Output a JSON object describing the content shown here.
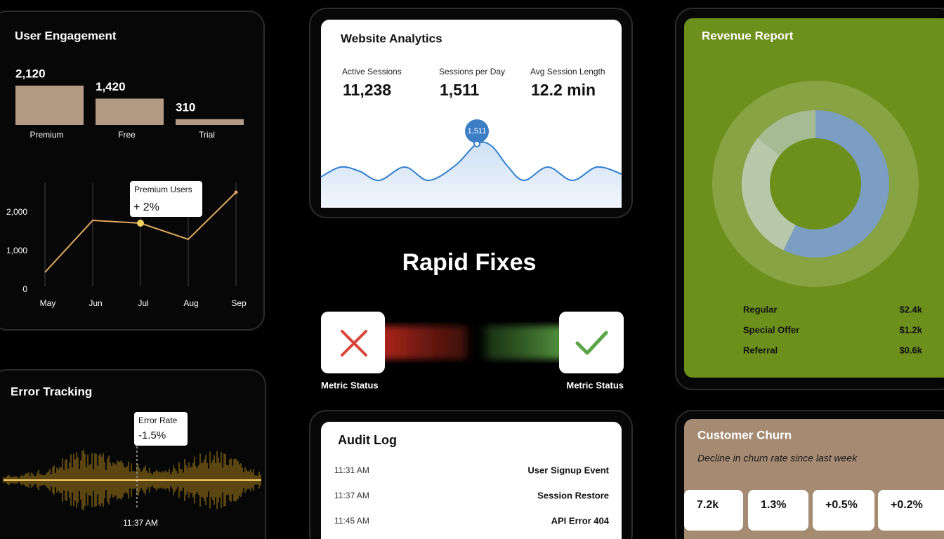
{
  "user_engagement": {
    "title": "User Engagement",
    "bar_chart": {
      "type": "bar",
      "categories": [
        "Premium",
        "Free",
        "Trial"
      ],
      "values": [
        2120,
        1420,
        310
      ],
      "value_labels": [
        "2,120",
        "1,420",
        "310"
      ],
      "color": "#b39b83"
    },
    "line_chart": {
      "type": "line",
      "x": [
        "May",
        "Jun",
        "Jul",
        "Aug",
        "Sep"
      ],
      "values": [
        455,
        1800,
        1727,
        1309,
        2527
      ],
      "color": "#e0a860",
      "ylim": [
        0,
        2800
      ],
      "yticks": [
        0,
        {
          "value": 1000,
          "label": "1,000"
        },
        {
          "value": 2000,
          "label": "2,000"
        }
      ],
      "tooltip": {
        "title": "Premium Users",
        "value": "+ 2%"
      }
    }
  },
  "website_analytics": {
    "title": "Website Analytics",
    "stats": [
      {
        "label": "Active Sessions",
        "value": "11,238"
      },
      {
        "label": "Sessions per Day",
        "value": "1,511"
      },
      {
        "label": "Avg Session Length",
        "value": "12.2 min"
      }
    ],
    "peak_label": "1,511"
  },
  "rapid_fixes": {
    "title": "Rapid Fixes",
    "status_left": "Metric Status",
    "status_right": "Metric Status"
  },
  "revenue_report": {
    "title": "Revenue Report",
    "chart": {
      "type": "pie",
      "categories": [
        "Regular",
        "Special Offer",
        "Referral"
      ],
      "values": [
        2.4,
        1.2,
        0.6
      ],
      "value_labels": [
        "$2.4k",
        "$1.2k",
        "$0.6k"
      ],
      "colors": [
        "#7b9ec2",
        "#b8c9ab",
        "#a6bb93"
      ]
    }
  },
  "error_tracking": {
    "title": "Error Tracking",
    "tooltip": {
      "title": "Error Rate",
      "value": "-1.5%"
    },
    "time": "11:37 AM"
  },
  "audit_log": {
    "title": "Audit Log",
    "rows": [
      {
        "time": "11:31 AM",
        "event": "User Signup Event"
      },
      {
        "time": "11:37 AM",
        "event": "Session Restore"
      },
      {
        "time": "11:45 AM",
        "event": "API Error 404"
      }
    ]
  },
  "customer_churn": {
    "title": "Customer Churn",
    "subtitle": "Decline in churn rate since last week",
    "stats": [
      "7.2k",
      "1.3%",
      "+0.5%",
      "+0.2%"
    ]
  }
}
